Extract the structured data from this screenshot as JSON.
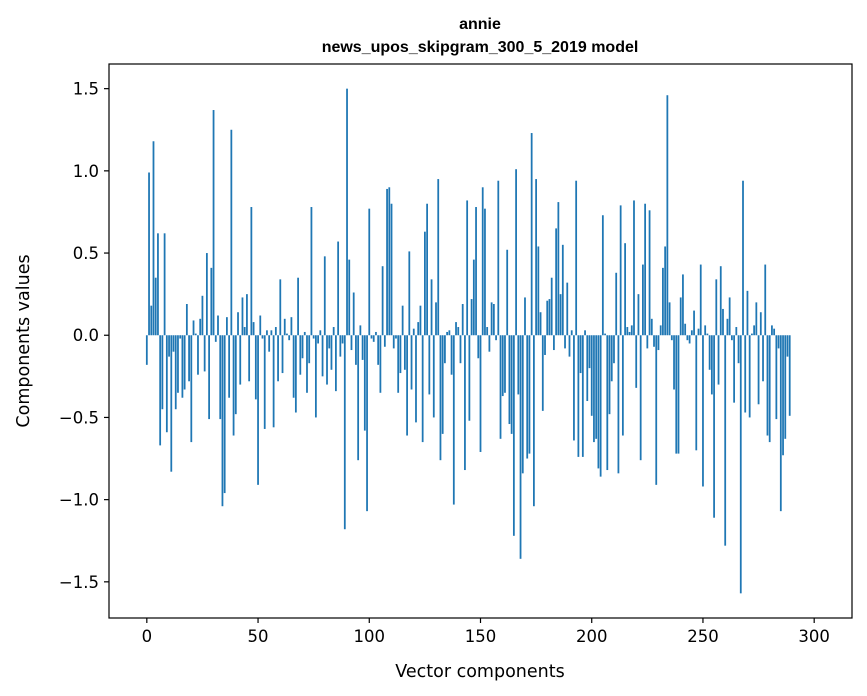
{
  "chart_data": {
    "type": "bar",
    "title": "annie",
    "subtitle": "news_upos_skipgram_300_5_2019 model",
    "xlabel": "Vector components",
    "ylabel": "Components values",
    "xlim": [
      -17,
      317
    ],
    "ylim": [
      -1.72,
      1.65
    ],
    "xticks": [
      0,
      50,
      100,
      150,
      200,
      250,
      300
    ],
    "yticks": [
      -1.5,
      -1.0,
      -0.5,
      0.0,
      0.5,
      1.0,
      1.5
    ],
    "ytick_labels": [
      "−1.5",
      "−1.0",
      "−0.5",
      "0.0",
      "0.5",
      "1.0",
      "1.5"
    ],
    "bar_color": "#1f77b4",
    "values": [
      -0.18,
      0.99,
      0.18,
      1.18,
      0.35,
      0.62,
      -0.67,
      -0.45,
      0.62,
      -0.59,
      -0.13,
      -0.83,
      -0.1,
      -0.45,
      -0.35,
      -0.02,
      -0.38,
      -0.33,
      0.19,
      -0.28,
      -0.65,
      0.09,
      0.01,
      -0.24,
      0.1,
      0.24,
      -0.22,
      0.5,
      -0.51,
      0.41,
      1.37,
      -0.04,
      0.12,
      -0.51,
      -1.04,
      -0.96,
      0.11,
      -0.38,
      1.25,
      -0.61,
      -0.48,
      0.14,
      -0.3,
      0.23,
      0.05,
      0.25,
      -0.28,
      0.78,
      0.08,
      -0.39,
      -0.91,
      0.12,
      -0.02,
      -0.57,
      0.03,
      -0.1,
      0.03,
      -0.56,
      0.05,
      -0.28,
      0.34,
      -0.23,
      0.1,
      0.01,
      -0.03,
      0.11,
      -0.38,
      -0.47,
      0.35,
      -0.24,
      -0.14,
      0.02,
      -0.35,
      -0.17,
      0.78,
      -0.02,
      -0.5,
      -0.05,
      0.03,
      -0.25,
      0.48,
      -0.3,
      -0.08,
      -0.21,
      0.05,
      -0.34,
      0.57,
      -0.13,
      -0.05,
      -1.18,
      1.5,
      0.46,
      -0.09,
      0.26,
      -0.18,
      -0.76,
      0.06,
      -0.15,
      -0.58,
      -1.07,
      0.77,
      -0.02,
      -0.04,
      0.02,
      -0.18,
      -0.35,
      0.42,
      -0.07,
      0.89,
      0.9,
      0.8,
      -0.08,
      -0.02,
      -0.35,
      -0.23,
      0.18,
      -0.21,
      -0.61,
      0.51,
      -0.33,
      0.04,
      -0.53,
      0.08,
      0.18,
      -0.65,
      0.63,
      0.8,
      -0.36,
      0.34,
      -0.5,
      0.2,
      0.95,
      -0.76,
      -0.6,
      -0.17,
      0.02,
      0.03,
      -0.24,
      -1.03,
      0.08,
      0.05,
      -0.17,
      0.19,
      -0.82,
      0.82,
      -0.52,
      0.22,
      0.46,
      0.78,
      -0.14,
      -0.71,
      0.9,
      0.77,
      0.05,
      -0.1,
      0.2,
      0.19,
      -0.03,
      0.94,
      -0.63,
      -0.37,
      -0.35,
      0.52,
      -0.54,
      -0.6,
      -1.22,
      1.01,
      -0.36,
      -1.36,
      -0.84,
      0.23,
      -0.75,
      -0.72,
      1.23,
      -1.04,
      0.95,
      0.54,
      0.14,
      -0.46,
      -0.12,
      0.21,
      0.22,
      0.35,
      -0.09,
      0.65,
      0.81,
      0.25,
      0.55,
      -0.08,
      0.32,
      -0.13,
      0.03,
      -0.64,
      0.94,
      -0.74,
      -0.23,
      -0.74,
      0.03,
      -0.4,
      -0.2,
      -0.49,
      -0.65,
      -0.63,
      -0.81,
      -0.86,
      0.73,
      0.01,
      -0.82,
      -0.48,
      -0.28,
      -0.17,
      0.38,
      -0.84,
      0.79,
      -0.61,
      0.56,
      0.05,
      0.02,
      0.06,
      0.82,
      -0.32,
      0.25,
      -0.76,
      0.43,
      0.8,
      -0.08,
      0.76,
      0.1,
      -0.07,
      -0.91,
      -0.09,
      0.06,
      0.41,
      0.54,
      1.46,
      0.2,
      -0.03,
      -0.33,
      -0.72,
      -0.72,
      0.23,
      0.37,
      0.07,
      -0.03,
      -0.05,
      0.03,
      0.15,
      -0.7,
      0.04,
      0.43,
      -0.92,
      0.06,
      0.01,
      -0.21,
      -0.36,
      -1.11,
      0.34,
      -0.3,
      0.42,
      0.16,
      -1.28,
      0.1,
      0.23,
      -0.03,
      -0.41,
      0.05,
      -0.17,
      -1.57,
      0.94,
      -0.47,
      0.27,
      -0.5,
      0.01,
      0.06,
      0.2,
      -0.42,
      0.14,
      -0.28,
      0.43,
      -0.61,
      -0.65,
      0.06,
      0.04,
      -0.51,
      -0.08,
      -1.07,
      -0.73,
      -0.63,
      -0.13,
      -0.49
    ]
  }
}
